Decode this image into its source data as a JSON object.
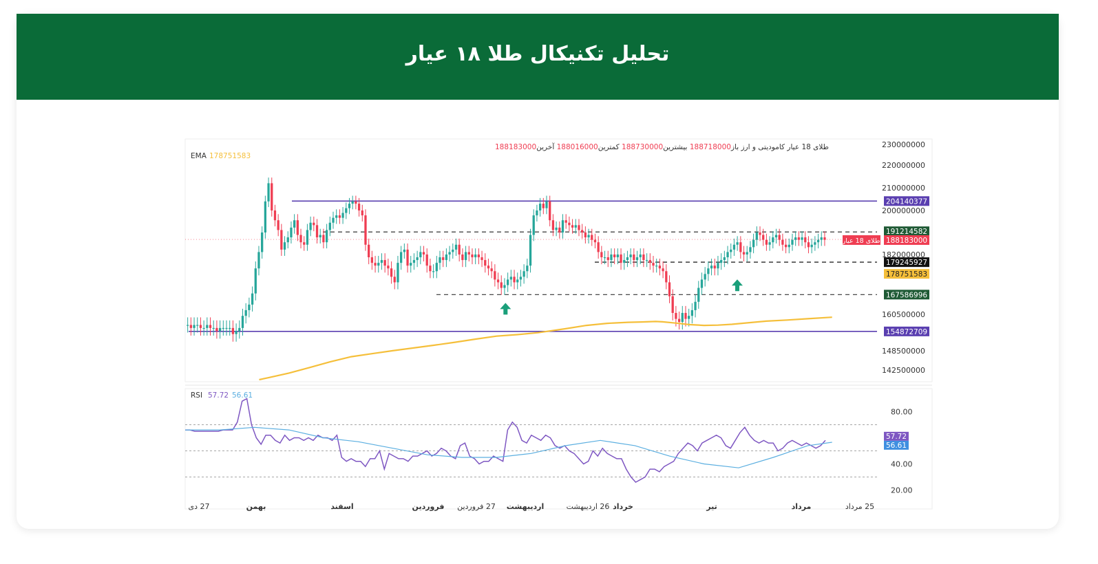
{
  "header": {
    "title": "تحلیل تکنیکال طلا ۱۸ عیار"
  },
  "colors": {
    "header_bg": "#0a6b38",
    "candle_up": "#26a69a",
    "candle_down": "#ef3d52",
    "ema": "#f5bf3a",
    "rsi": "#7e57c2",
    "rsi_ma": "#5aaee0",
    "resistance_line": "#5a3fb0",
    "arrow": "#1a9f7a"
  },
  "legend": {
    "symbol": "طلای 18 عیار کامودیتی و ارز",
    "open_label": "باز",
    "open_value": "188718000",
    "high_label": "بیشترین",
    "high_value": "188730000",
    "low_label": "کمترین",
    "low_value": "188016000",
    "close_label": "آخرین",
    "close_value": "188183000",
    "ema_label": "EMA",
    "ema_value": "178751583"
  },
  "rsi_legend": {
    "label": "RSI",
    "value": "57.72",
    "ma_value": "56.61"
  },
  "chart_data": {
    "type": "candlestick",
    "price_axis_ticks": [
      "230000000",
      "220000000",
      "210000000",
      "200000000",
      "182000000",
      "160500000",
      "148500000",
      "142500000"
    ],
    "price_axis_tick_values": [
      230000000,
      220000000,
      210000000,
      200000000,
      182000000,
      160500000,
      148500000,
      142500000
    ],
    "time_axis_labels": [
      "27 دی",
      "بهمن",
      "اسفند",
      "فروردین",
      "27 فروردین",
      "اردیبهشت",
      "26 اردیبهشت",
      "خرداد",
      "تیر",
      "مرداد",
      "25 مرداد"
    ],
    "price_labels": [
      {
        "value": "204140377",
        "kind": "level-purple"
      },
      {
        "value": "191214582",
        "kind": "level-green"
      },
      {
        "value": "188183000",
        "kind": "last-price"
      },
      {
        "value": "179245927",
        "kind": "level-black"
      },
      {
        "value": "178751583",
        "kind": "ema"
      },
      {
        "value": "167586996",
        "kind": "level-green"
      },
      {
        "value": "154872709",
        "kind": "level-purple"
      }
    ],
    "last_price_tag": "طلای 18 عیار",
    "horizontal_levels": [
      {
        "value": 204140377,
        "style": "solid",
        "color": "#5a3fb0"
      },
      {
        "value": 191214582,
        "style": "dashed",
        "color": "#333333"
      },
      {
        "value": 179245927,
        "style": "dashed",
        "color": "#111111"
      },
      {
        "value": 167586996,
        "style": "dashed",
        "color": "#333333"
      },
      {
        "value": 154872709,
        "style": "solid",
        "color": "#5a3fb0"
      }
    ],
    "close_series": [
      157,
      156,
      157,
      157,
      156,
      156,
      157,
      156,
      156,
      155,
      156,
      156,
      156,
      156,
      154,
      155,
      156,
      160,
      162,
      164,
      168,
      177,
      183,
      191,
      204,
      212,
      200,
      196,
      192,
      184,
      187,
      189,
      193,
      196,
      190,
      187,
      186,
      192,
      195,
      194,
      189,
      190,
      187,
      192,
      195,
      197,
      198,
      197,
      199,
      201,
      203,
      204,
      203,
      200,
      198,
      186,
      181,
      179,
      178,
      179,
      180,
      178,
      177,
      174,
      172,
      179,
      183,
      184,
      178,
      179,
      180,
      181,
      183,
      182,
      178,
      176,
      176,
      179,
      181,
      180,
      182,
      183,
      184,
      186,
      182,
      180,
      183,
      182,
      181,
      182,
      181,
      180,
      178,
      177,
      176,
      173,
      172,
      170,
      171,
      173,
      174,
      172,
      173,
      174,
      176,
      178,
      190,
      198,
      200,
      203,
      201,
      204,
      196,
      192,
      193,
      191,
      196,
      195,
      194,
      193,
      194,
      192,
      191,
      189,
      190,
      188,
      187,
      183,
      181,
      181,
      180,
      182,
      181,
      182,
      179,
      180,
      181,
      182,
      180,
      181,
      182,
      180,
      180,
      179,
      178,
      178,
      177,
      176,
      172,
      167,
      161,
      159,
      158,
      161,
      159,
      160,
      162,
      165,
      170,
      173,
      175,
      177,
      178,
      177,
      179,
      180,
      181,
      183,
      184,
      186,
      187,
      183,
      182,
      183,
      185,
      188,
      191,
      190,
      188,
      186,
      187,
      189,
      190,
      188,
      186,
      185,
      186,
      188,
      189,
      188,
      189,
      187,
      185,
      186,
      187,
      188,
      189,
      188
    ],
    "ema_series": [
      [
        0.107,
        0.0
      ],
      [
        0.12,
        0.016
      ],
      [
        0.15,
        0.056
      ],
      [
        0.18,
        0.103
      ],
      [
        0.21,
        0.152
      ],
      [
        0.24,
        0.194
      ],
      [
        0.27,
        0.22
      ],
      [
        0.3,
        0.245
      ],
      [
        0.33,
        0.268
      ],
      [
        0.36,
        0.291
      ],
      [
        0.39,
        0.316
      ],
      [
        0.42,
        0.343
      ],
      [
        0.45,
        0.368
      ],
      [
        0.48,
        0.381
      ],
      [
        0.51,
        0.397
      ],
      [
        0.55,
        0.431
      ],
      [
        0.58,
        0.459
      ],
      [
        0.61,
        0.476
      ],
      [
        0.64,
        0.485
      ],
      [
        0.66,
        0.488
      ],
      [
        0.68,
        0.492
      ],
      [
        0.69,
        0.489
      ],
      [
        0.71,
        0.478
      ],
      [
        0.73,
        0.465
      ],
      [
        0.75,
        0.459
      ],
      [
        0.77,
        0.461
      ],
      [
        0.79,
        0.468
      ],
      [
        0.81,
        0.479
      ],
      [
        0.84,
        0.495
      ],
      [
        0.87,
        0.504
      ],
      [
        0.9,
        0.515
      ],
      [
        0.935,
        0.528
      ]
    ],
    "rsi_axis_ticks": [
      "80.00",
      "40.00",
      "20.00"
    ],
    "rsi_axis_tick_values": [
      80,
      40,
      20
    ],
    "rsi_last": "57.72",
    "rsi_ma_last": "56.61",
    "rsi_series": [
      66,
      66,
      65,
      65,
      65,
      65,
      65,
      65,
      66,
      66,
      66,
      72,
      88,
      90,
      70,
      60,
      55,
      62,
      62,
      58,
      56,
      62,
      58,
      60,
      60,
      58,
      60,
      58,
      62,
      60,
      60,
      58,
      62,
      45,
      42,
      44,
      42,
      42,
      38,
      44,
      44,
      50,
      36,
      48,
      46,
      44,
      44,
      42,
      46,
      46,
      48,
      50,
      46,
      48,
      52,
      50,
      46,
      44,
      54,
      56,
      46,
      44,
      40,
      42,
      42,
      46,
      44,
      42,
      66,
      72,
      68,
      58,
      56,
      62,
      60,
      58,
      62,
      60,
      54,
      52,
      54,
      50,
      48,
      44,
      40,
      42,
      50,
      46,
      52,
      48,
      46,
      44,
      44,
      36,
      30,
      26,
      28,
      30,
      36,
      36,
      34,
      38,
      40,
      42,
      48,
      52,
      56,
      54,
      50,
      56,
      58,
      60,
      62,
      60,
      54,
      52,
      58,
      64,
      68,
      62,
      58,
      56,
      58,
      56,
      56,
      50,
      52,
      56,
      58,
      56,
      54,
      56,
      54,
      52,
      54,
      58
    ],
    "rsi_ma_series": [
      [
        0.0,
        66
      ],
      [
        0.05,
        66
      ],
      [
        0.1,
        68
      ],
      [
        0.15,
        66
      ],
      [
        0.2,
        60
      ],
      [
        0.25,
        57
      ],
      [
        0.3,
        52
      ],
      [
        0.35,
        47
      ],
      [
        0.4,
        45
      ],
      [
        0.45,
        45
      ],
      [
        0.5,
        48
      ],
      [
        0.55,
        54
      ],
      [
        0.6,
        58
      ],
      [
        0.65,
        54
      ],
      [
        0.7,
        46
      ],
      [
        0.75,
        40
      ],
      [
        0.8,
        37
      ],
      [
        0.85,
        45
      ],
      [
        0.9,
        54
      ],
      [
        0.935,
        56.6
      ]
    ],
    "ylim_price": [
      140000000,
      230000000
    ],
    "ylim_rsi": [
      15,
      95
    ],
    "buy_arrows": [
      {
        "x": 0.463,
        "y": 167586996
      },
      {
        "x": 0.798,
        "y": 176000000
      }
    ]
  }
}
